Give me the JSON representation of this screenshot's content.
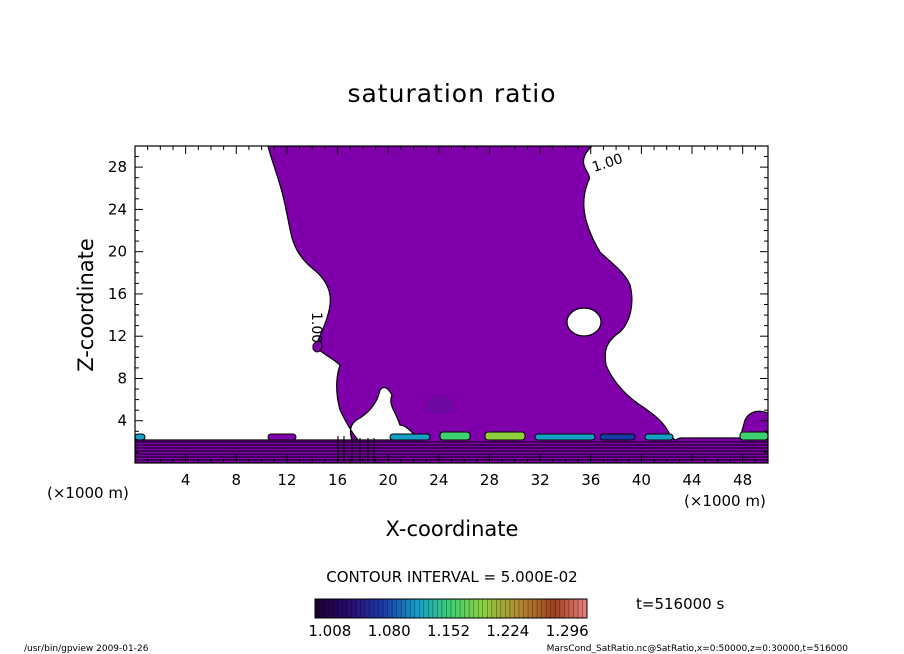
{
  "chart_data": {
    "type": "contour",
    "title": "saturation ratio",
    "xlabel": "X-coordinate",
    "ylabel": "Z-coordinate",
    "x_unit": "(×1000 m)",
    "y_unit": "(×1000 m)",
    "xlim": [
      0,
      50
    ],
    "ylim": [
      0,
      30
    ],
    "x_ticks": [
      4,
      8,
      12,
      16,
      20,
      24,
      28,
      32,
      36,
      40,
      44,
      48
    ],
    "y_ticks": [
      4,
      8,
      12,
      16,
      20,
      24,
      28
    ],
    "contour_labels": [
      "1.00",
      "1.00"
    ],
    "contour_interval_text": "CONTOUR INTERVAL = 5.000E-02",
    "colorbar": {
      "tick_labels": [
        "1.008",
        "1.080",
        "1.152",
        "1.224",
        "1.296"
      ],
      "min": 0.99,
      "max": 1.32
    },
    "time_label": "t=516000 s",
    "footer_left": "/usr/bin/gpview  2009-01-26",
    "footer_right": "MarsCond_SatRatio.nc@SatRatio,x=0:50000,z=0:30000,t=516000",
    "colors": {
      "fill": "#7f00ab",
      "contour_line": "#000000",
      "colormap": [
        "#1a0033",
        "#2a0a6b",
        "#1a3aa8",
        "#16a0c8",
        "#3fd070",
        "#8fd040",
        "#b08a30",
        "#a04020",
        "#e88080"
      ]
    }
  }
}
